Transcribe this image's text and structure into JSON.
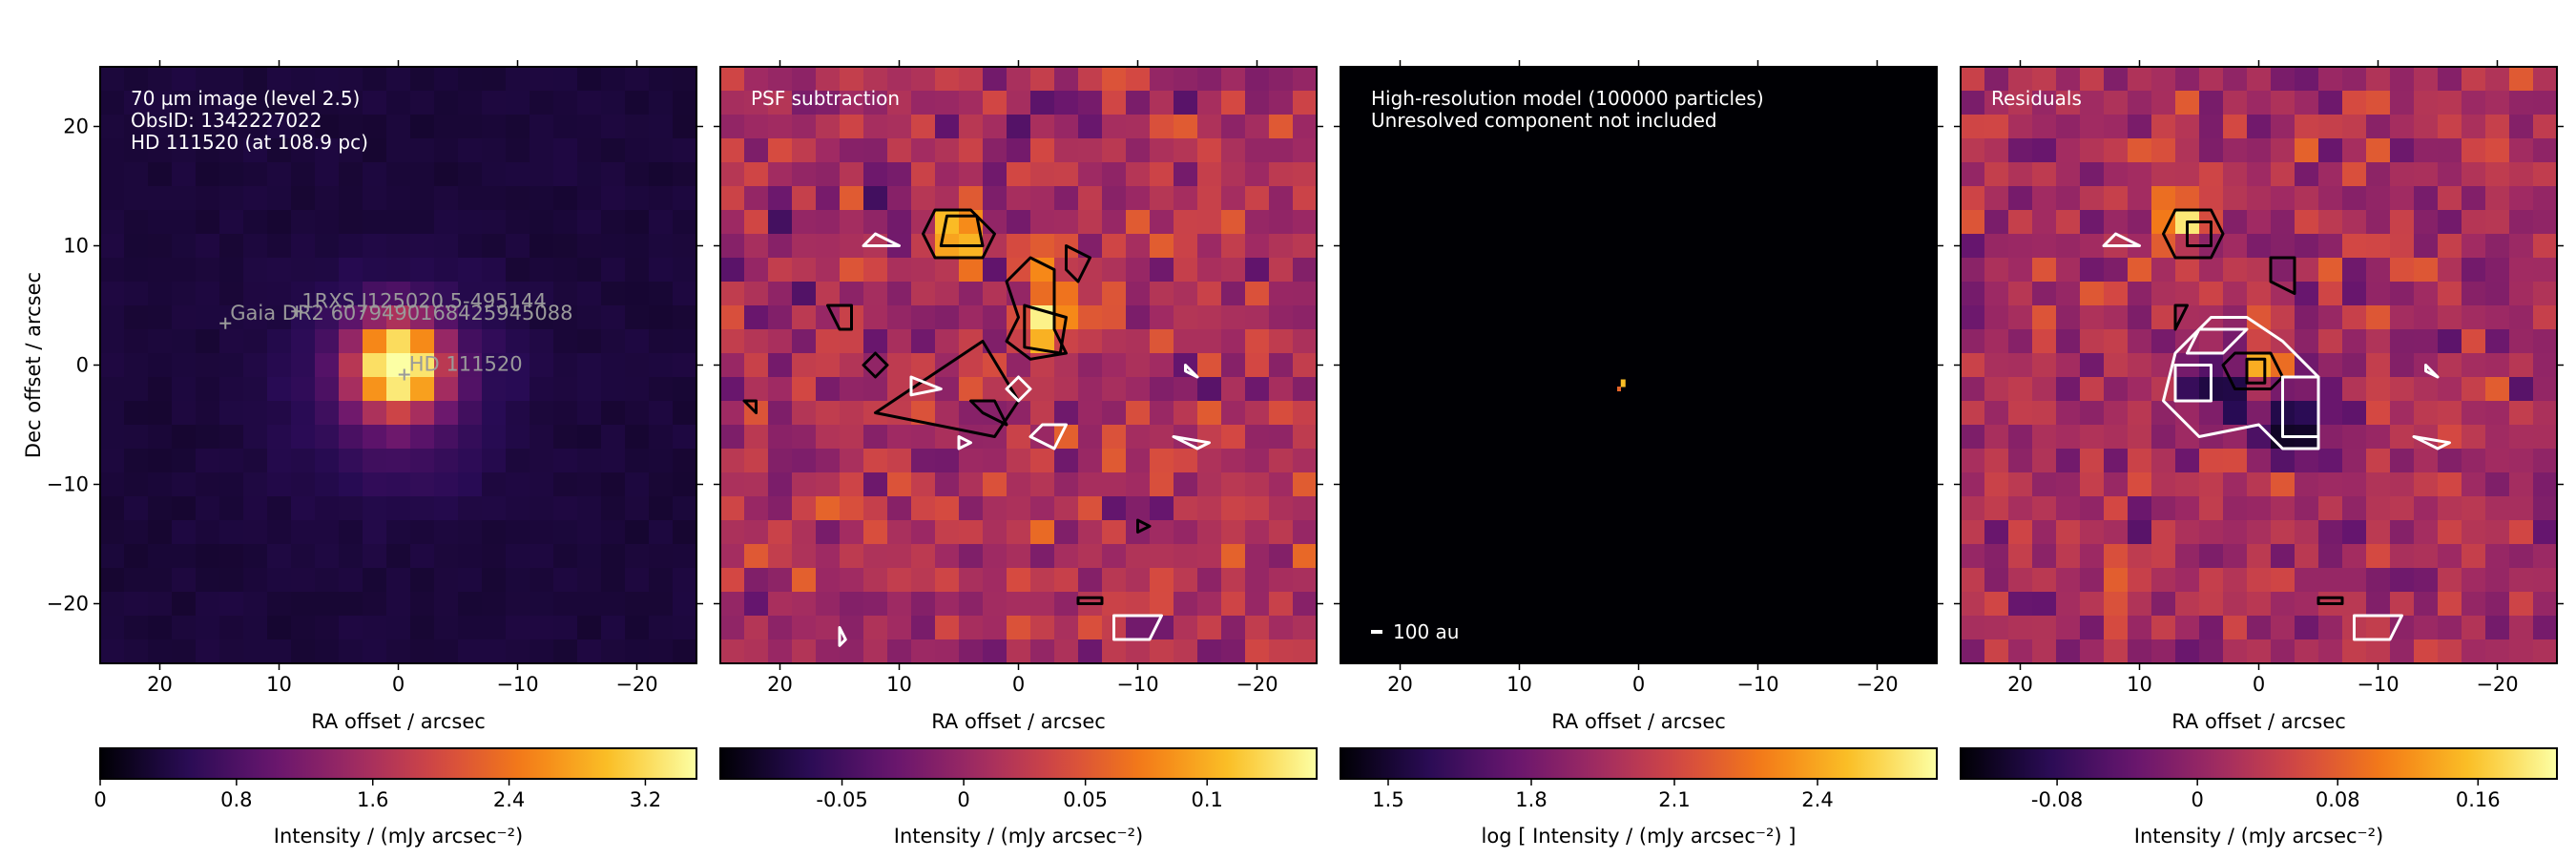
{
  "figure": {
    "panels": [
      {
        "id": "observation",
        "labels": [
          "70 µm image (level 2.5)",
          "ObsID: 1342227022",
          "HD 111520 (at 108.9 pc)"
        ],
        "cmap": "inferno",
        "kind": "source",
        "sources": [
          {
            "label": "HD 111520",
            "ra": -0.5,
            "dec": -0.8
          },
          {
            "label": "1RXS J125020.5-495144",
            "ra": 8.5,
            "dec": 4.5
          },
          {
            "label": "Gaia DR2 6079490168425945088",
            "ra": 14.5,
            "dec": 3.5
          }
        ],
        "scalebar": "",
        "colorbar": {
          "ticks": [
            "0",
            "0.8",
            "1.6",
            "2.4",
            "3.2"
          ],
          "tick_values": [
            0,
            0.8,
            1.6,
            2.4,
            3.2
          ],
          "range": [
            0,
            3.5
          ],
          "label": "Intensity / (mJy arcsec⁻²)"
        }
      },
      {
        "id": "psf-subtraction",
        "labels": [
          "PSF subtraction"
        ],
        "cmap": "inferno",
        "kind": "noise",
        "colorbar": {
          "ticks": [
            "-0.05",
            "0",
            "0.05",
            "0.1"
          ],
          "tick_values": [
            -0.05,
            0,
            0.05,
            0.1
          ],
          "range": [
            -0.1,
            0.145
          ],
          "label": "Intensity / (mJy arcsec⁻²)"
        }
      },
      {
        "id": "model",
        "labels": [
          "High-resolution model (100000 particles)",
          "Unresolved component not included"
        ],
        "cmap": "inferno",
        "kind": "model",
        "scalebar": "100 au",
        "colorbar": {
          "ticks": [
            "1.5",
            "1.8",
            "2.1",
            "2.4"
          ],
          "tick_values": [
            1.5,
            1.8,
            2.1,
            2.4
          ],
          "range": [
            1.4,
            2.65
          ],
          "label": "log [ Intensity / (mJy arcsec⁻²) ]"
        }
      },
      {
        "id": "residuals",
        "labels": [
          "Residuals"
        ],
        "cmap": "inferno",
        "kind": "residual",
        "colorbar": {
          "ticks": [
            "-0.08",
            "0",
            "0.08",
            "0.16"
          ],
          "tick_values": [
            -0.08,
            0,
            0.08,
            0.16
          ],
          "range": [
            -0.135,
            0.205
          ],
          "label": "Intensity / (mJy arcsec⁻²)"
        }
      }
    ],
    "xaxis": {
      "label": "RA offset / arcsec",
      "ticks": [
        "20",
        "10",
        "0",
        "−10",
        "−20"
      ],
      "tick_values": [
        20,
        10,
        0,
        -10,
        -20
      ],
      "range": [
        25,
        -25
      ]
    },
    "yaxis": {
      "label": "Dec offset / arcsec",
      "ticks": [
        "20",
        "10",
        "0",
        "−10",
        "−20"
      ],
      "tick_values": [
        20,
        10,
        0,
        -10,
        -20
      ],
      "range": [
        -25,
        25
      ]
    }
  },
  "chart_data": {
    "type": "heatmap",
    "title": "",
    "xlabel": "RA offset / arcsec",
    "ylabel": "Dec offset / arcsec",
    "xlim": [
      25,
      -25
    ],
    "ylim": [
      -25,
      25
    ],
    "pixel_size_arcsec": 2,
    "panels": [
      {
        "name": "70 µm image (level 2.5)",
        "peak": {
          "ra": 0,
          "dec": 0,
          "value": 3.4
        },
        "colorbar_range": [
          0,
          3.5
        ]
      },
      {
        "name": "PSF subtraction",
        "colorbar_range": [
          -0.1,
          0.145
        ],
        "contour_levels": [
          "-3σ",
          "-2σ",
          "2σ",
          "3σ"
        ]
      },
      {
        "name": "High-resolution model (100000 particles)",
        "peak": {
          "ra": 1.5,
          "dec": -1.5
        },
        "colorbar_range": [
          1.4,
          2.65
        ]
      },
      {
        "name": "Residuals",
        "colorbar_range": [
          -0.135,
          0.205
        ],
        "contour_levels": [
          "-3σ",
          "-2σ",
          "2σ",
          "3σ"
        ]
      }
    ]
  }
}
